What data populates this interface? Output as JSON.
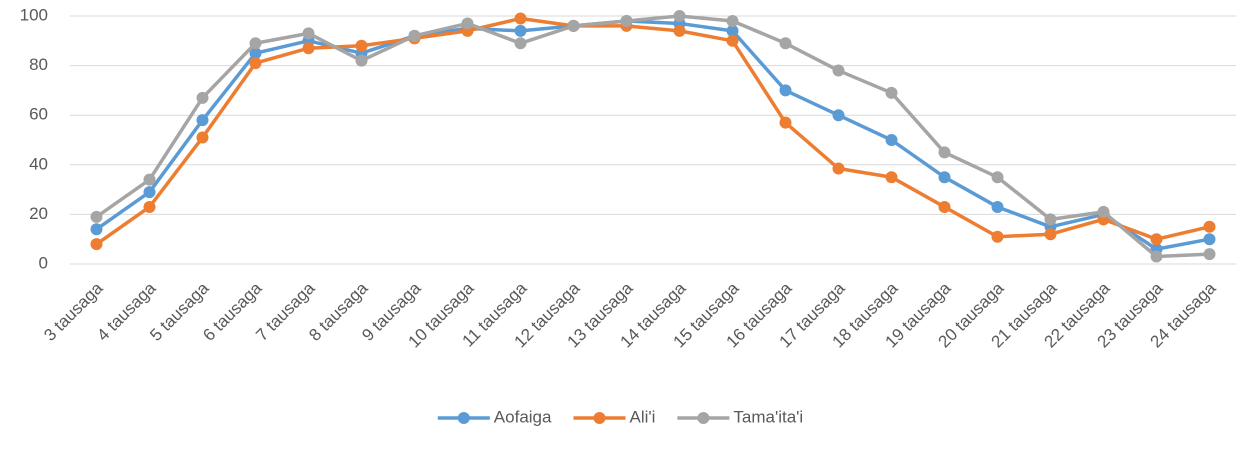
{
  "chart_data": {
    "type": "line",
    "categories": [
      "3 tausaga",
      "4 tausaga",
      "5 tausaga",
      "6 tausaga",
      "7 tausaga",
      "8 tausaga",
      "9 tausaga",
      "10 tausaga",
      "11 tausaga",
      "12 tausaga",
      "13 tausaga",
      "14 tausaga",
      "15 tausaga",
      "16 tausaga",
      "17 tausaga",
      "18 tausaga",
      "19 tausaga",
      "20 tausaga",
      "21 tausaga",
      "22 tausaga",
      "23 tausaga",
      "24 tausaga"
    ],
    "series": [
      {
        "name": "Aofaiga",
        "color": "#5b9bd5",
        "values": [
          14,
          29,
          58,
          85,
          90,
          85,
          92,
          95,
          94,
          96,
          98,
          97,
          94,
          70,
          60,
          50,
          35,
          23,
          15,
          20,
          6,
          10
        ]
      },
      {
        "name": "Ali'i",
        "color": "#ed7d31",
        "values": [
          8,
          23,
          51,
          81,
          87,
          88,
          91,
          94,
          99,
          96,
          96,
          94,
          90,
          57,
          38.5,
          35,
          23,
          11,
          12,
          18,
          10,
          15
        ]
      },
      {
        "name": "Tama'ita'i",
        "color": "#a5a5a5",
        "values": [
          19,
          34,
          67,
          89,
          93,
          82,
          92,
          97,
          89,
          96,
          98,
          100,
          98,
          89,
          78,
          69,
          45,
          35,
          18,
          21,
          3,
          4
        ]
      }
    ],
    "ylim": [
      0,
      100
    ],
    "yticks": [
      0,
      20,
      40,
      60,
      80,
      100
    ],
    "grid": true,
    "legend": "bottom"
  }
}
